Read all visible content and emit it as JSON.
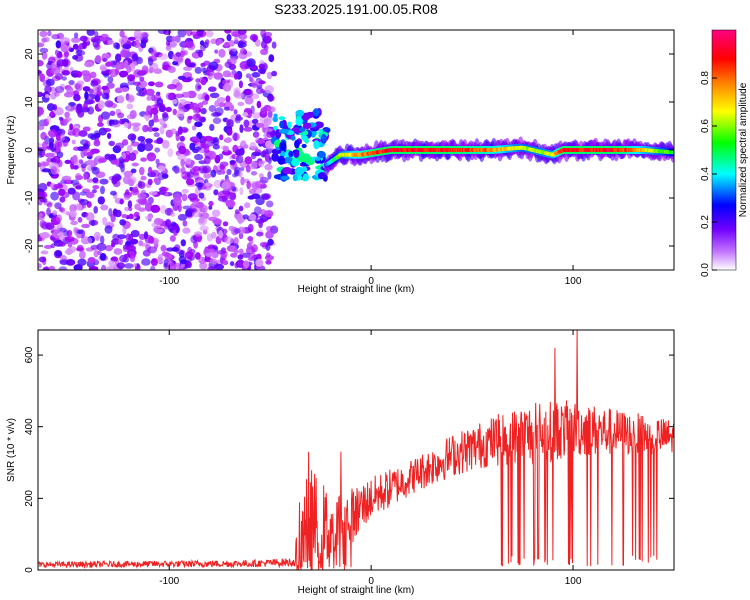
{
  "title": "S233.2025.191.00.05.R08",
  "chart_data": [
    {
      "type": "heatmap",
      "xlabel": "Height of straight line (km)",
      "ylabel": "Frequency (Hz)",
      "xlim": [
        -165,
        150
      ],
      "ylim": [
        -25,
        25
      ],
      "xticks": [
        -100,
        0,
        100
      ],
      "yticks": [
        -20,
        -10,
        0,
        10,
        20
      ],
      "colorbar": {
        "label": "Normalized spectral amplitude",
        "range": [
          0,
          1
        ],
        "ticks": [
          "0.0",
          "0.2",
          "0.4",
          "0.6",
          "0.8"
        ],
        "colors": [
          "#ffffff",
          "#a400ff",
          "#0000ff",
          "#00ffff",
          "#00ff00",
          "#ffff00",
          "#ff7f00",
          "#ff0000",
          "#ff0080"
        ]
      },
      "noise_region": {
        "x_range": [
          -165,
          -48
        ],
        "y_range": [
          -25,
          25
        ],
        "level": 0.15
      },
      "transition_region": {
        "x_range": [
          -48,
          -22
        ],
        "y_range": [
          -6,
          8
        ],
        "level": 0.3
      },
      "signal_line": [
        {
          "x": -22,
          "y": -3,
          "level": 0.35
        },
        {
          "x": -15,
          "y": -1,
          "level": 0.6
        },
        {
          "x": -5,
          "y": -1,
          "level": 0.8
        },
        {
          "x": 10,
          "y": 0,
          "level": 0.95
        },
        {
          "x": 40,
          "y": 0,
          "level": 0.9
        },
        {
          "x": 60,
          "y": 0,
          "level": 0.8
        },
        {
          "x": 75,
          "y": 0.5,
          "level": 0.6
        },
        {
          "x": 90,
          "y": -1,
          "level": 0.65
        },
        {
          "x": 95,
          "y": 0,
          "level": 0.9
        },
        {
          "x": 120,
          "y": 0,
          "level": 0.95
        },
        {
          "x": 135,
          "y": 0,
          "level": 0.7
        },
        {
          "x": 150,
          "y": -0.5,
          "level": 0.5
        }
      ]
    },
    {
      "type": "line",
      "xlabel": "Height of straight line (km)",
      "ylabel": "SNR (10 * v/v)",
      "xlim": [
        -165,
        150
      ],
      "ylim": [
        0,
        670
      ],
      "xticks": [
        -100,
        0,
        100
      ],
      "yticks": [
        0,
        200,
        400,
        600
      ],
      "series": [
        {
          "color": "#ee2222",
          "envelope": [
            {
              "x": -165,
              "base": 15,
              "amp": 8
            },
            {
              "x": -60,
              "base": 18,
              "amp": 10
            },
            {
              "x": -38,
              "base": 22,
              "amp": 12
            },
            {
              "x": -35,
              "base": 80,
              "amp": 140
            },
            {
              "x": -30,
              "base": 130,
              "amp": 160
            },
            {
              "x": -20,
              "base": 110,
              "amp": 110
            },
            {
              "x": -10,
              "base": 150,
              "amp": 80
            },
            {
              "x": 0,
              "base": 200,
              "amp": 60
            },
            {
              "x": 20,
              "base": 260,
              "amp": 50
            },
            {
              "x": 40,
              "base": 320,
              "amp": 60
            },
            {
              "x": 60,
              "base": 360,
              "amp": 70
            },
            {
              "x": 80,
              "base": 380,
              "amp": 90
            },
            {
              "x": 100,
              "base": 395,
              "amp": 80
            },
            {
              "x": 130,
              "base": 380,
              "amp": 60
            },
            {
              "x": 150,
              "base": 370,
              "amp": 50
            }
          ],
          "peaks": [
            {
              "x": -31,
              "y": 330
            },
            {
              "x": -15,
              "y": 330
            },
            {
              "x": 91,
              "y": 620
            },
            {
              "x": 102,
              "y": 670
            }
          ]
        }
      ]
    }
  ]
}
